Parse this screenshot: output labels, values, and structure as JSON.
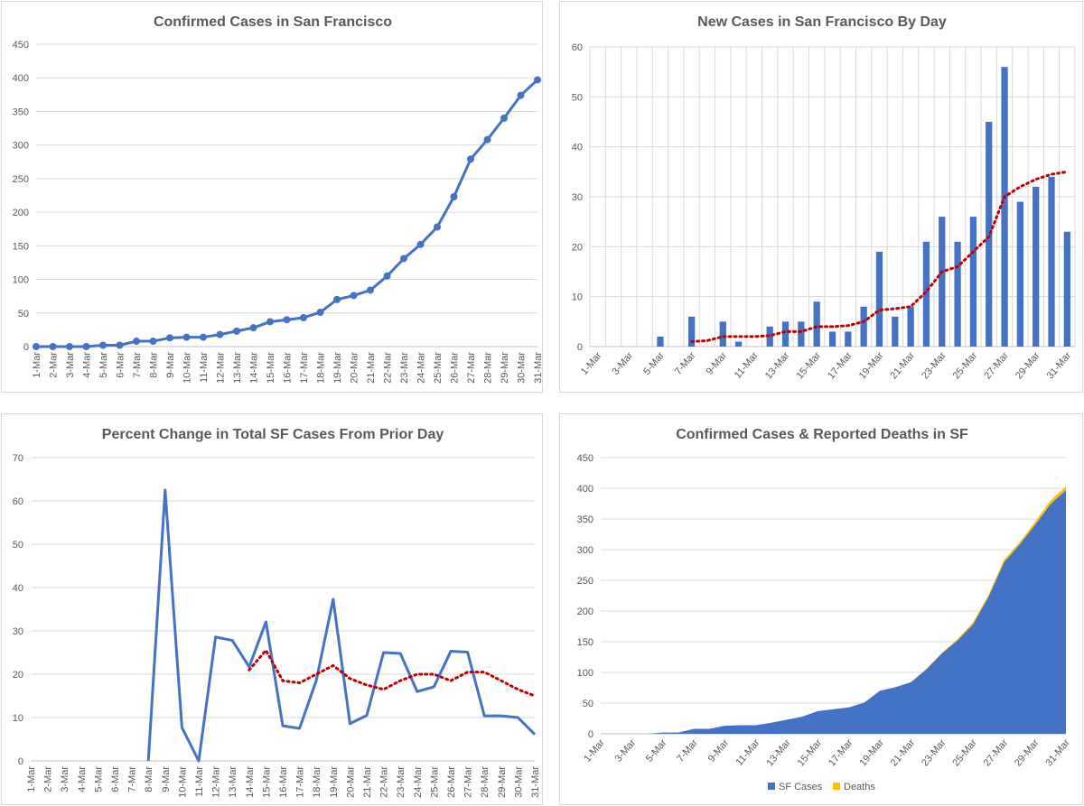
{
  "charts": [
    {
      "id": "c1",
      "type": "line",
      "title": "Confirmed Cases in San Francisco",
      "x": [
        "1-Mar",
        "2-Mar",
        "3-Mar",
        "4-Mar",
        "5-Mar",
        "6-Mar",
        "7-Mar",
        "8-Mar",
        "9-Mar",
        "10-Mar",
        "11-Mar",
        "12-Mar",
        "13-Mar",
        "14-Mar",
        "15-Mar",
        "16-Mar",
        "17-Mar",
        "18-Mar",
        "19-Mar",
        "20-Mar",
        "21-Mar",
        "22-Mar",
        "23-Mar",
        "24-Mar",
        "25-Mar",
        "26-Mar",
        "27-Mar",
        "28-Mar",
        "29-Mar",
        "30-Mar",
        "31-Mar"
      ],
      "x_tick_labels": [
        "1-Mar",
        "2-Mar",
        "3-Mar",
        "4-Mar",
        "5-Mar",
        "6-Mar",
        "7-Mar",
        "8-Mar",
        "9-Mar",
        "10-Mar",
        "11-Mar",
        "12-Mar",
        "13-Mar",
        "14-Mar",
        "15-Mar",
        "16-Mar",
        "17-Mar",
        "18-Mar",
        "19-Mar",
        "20-Mar",
        "21-Mar",
        "22-Mar",
        "23-Mar",
        "24-Mar",
        "25-Mar",
        "26-Mar",
        "27-Mar",
        "28-Mar",
        "29-Mar",
        "30-Mar",
        "31-Mar"
      ],
      "series": [
        {
          "values": [
            0,
            0,
            0,
            0,
            2,
            2,
            8,
            8,
            13,
            14,
            14,
            18,
            23,
            28,
            37,
            40,
            43,
            51,
            70,
            76,
            84,
            105,
            131,
            152,
            178,
            223,
            279,
            308,
            340,
            374,
            397
          ],
          "color": "#4472c4"
        }
      ],
      "ylim": [
        0,
        450
      ],
      "yticks": [
        0,
        50,
        100,
        150,
        200,
        250,
        300,
        350,
        400,
        450
      ],
      "grid": true
    },
    {
      "id": "c2",
      "type": "bar",
      "title": "New Cases in San Francisco By Day",
      "x": [
        "1-Mar",
        "2-Mar",
        "3-Mar",
        "4-Mar",
        "5-Mar",
        "6-Mar",
        "7-Mar",
        "8-Mar",
        "9-Mar",
        "10-Mar",
        "11-Mar",
        "12-Mar",
        "13-Mar",
        "14-Mar",
        "15-Mar",
        "16-Mar",
        "17-Mar",
        "18-Mar",
        "19-Mar",
        "20-Mar",
        "21-Mar",
        "22-Mar",
        "23-Mar",
        "24-Mar",
        "25-Mar",
        "26-Mar",
        "27-Mar",
        "28-Mar",
        "29-Mar",
        "30-Mar",
        "31-Mar"
      ],
      "x_tick_labels": [
        "1-Mar",
        "",
        "3-Mar",
        "",
        "5-Mar",
        "",
        "7-Mar",
        "",
        "9-Mar",
        "",
        "11-Mar",
        "",
        "13-Mar",
        "",
        "15-Mar",
        "",
        "17-Mar",
        "",
        "19-Mar",
        "",
        "21-Mar",
        "",
        "23-Mar",
        "",
        "25-Mar",
        "",
        "27-Mar",
        "",
        "29-Mar",
        "",
        "31-Mar"
      ],
      "series": [
        {
          "values": [
            0,
            0,
            0,
            0,
            2,
            0,
            6,
            0,
            5,
            1,
            0,
            4,
            5,
            5,
            9,
            3,
            3,
            8,
            19,
            6,
            8,
            21,
            26,
            21,
            26,
            45,
            56,
            29,
            32,
            34,
            23
          ],
          "color": "#4472c4"
        }
      ],
      "trend": {
        "values": [
          null,
          null,
          null,
          null,
          null,
          null,
          1,
          1.2,
          2,
          2,
          2,
          2.2,
          3,
          3,
          4,
          4,
          4.2,
          5,
          7.3,
          7.6,
          8,
          11,
          15,
          16,
          19,
          22,
          30,
          32,
          33.5,
          34.5,
          35
        ],
        "color": "#c00000"
      },
      "ylim": [
        0,
        60
      ],
      "yticks": [
        0,
        10,
        20,
        30,
        40,
        50,
        60
      ],
      "grid": true
    },
    {
      "id": "c3",
      "type": "line",
      "title": "Percent Change in Total SF Cases From Prior Day",
      "x": [
        "1-Mar",
        "2-Mar",
        "3-Mar",
        "4-Mar",
        "5-Mar",
        "6-Mar",
        "7-Mar",
        "8-Mar",
        "9-Mar",
        "10-Mar",
        "11-Mar",
        "12-Mar",
        "13-Mar",
        "14-Mar",
        "15-Mar",
        "16-Mar",
        "17-Mar",
        "18-Mar",
        "19-Mar",
        "20-Mar",
        "21-Mar",
        "22-Mar",
        "23-Mar",
        "24-Mar",
        "25-Mar",
        "26-Mar",
        "27-Mar",
        "28-Mar",
        "29-Mar",
        "30-Mar",
        "31-Mar"
      ],
      "x_tick_labels": [
        "1-Mar",
        "2-Mar",
        "3-Mar",
        "4-Mar",
        "5-Mar",
        "6-Mar",
        "7-Mar",
        "8-Mar",
        "9-Mar",
        "10-Mar",
        "11-Mar",
        "12-Mar",
        "13-Mar",
        "14-Mar",
        "15-Mar",
        "16-Mar",
        "17-Mar",
        "18-Mar",
        "19-Mar",
        "20-Mar",
        "21-Mar",
        "22-Mar",
        "23-Mar",
        "24-Mar",
        "25-Mar",
        "26-Mar",
        "27-Mar",
        "28-Mar",
        "29-Mar",
        "30-Mar",
        "31-Mar"
      ],
      "series": [
        {
          "values": [
            null,
            null,
            null,
            null,
            null,
            null,
            null,
            0,
            62.5,
            7.7,
            0,
            28.6,
            27.8,
            21.7,
            32.1,
            8.1,
            7.5,
            18.6,
            37.3,
            8.6,
            10.5,
            25,
            24.8,
            16,
            17.1,
            25.3,
            25.1,
            10.4,
            10.4,
            10,
            6.1
          ],
          "color": "#4472c4"
        }
      ],
      "trend": {
        "values": [
          null,
          null,
          null,
          null,
          null,
          null,
          null,
          null,
          null,
          null,
          null,
          null,
          null,
          21,
          25.5,
          18.5,
          18,
          20,
          22,
          19,
          17.5,
          16.5,
          18.5,
          20,
          20,
          18.5,
          20.5,
          20.5,
          18.5,
          16.5,
          15
        ],
        "color": "#c00000"
      },
      "ylim": [
        0,
        70
      ],
      "yticks": [
        0,
        10,
        20,
        30,
        40,
        50,
        60,
        70
      ],
      "grid": true
    },
    {
      "id": "c4",
      "type": "area",
      "title": "Confirmed Cases & Reported Deaths in SF",
      "x": [
        "1-Mar",
        "2-Mar",
        "3-Mar",
        "4-Mar",
        "5-Mar",
        "6-Mar",
        "7-Mar",
        "8-Mar",
        "9-Mar",
        "10-Mar",
        "11-Mar",
        "12-Mar",
        "13-Mar",
        "14-Mar",
        "15-Mar",
        "16-Mar",
        "17-Mar",
        "18-Mar",
        "19-Mar",
        "20-Mar",
        "21-Mar",
        "22-Mar",
        "23-Mar",
        "24-Mar",
        "25-Mar",
        "26-Mar",
        "27-Mar",
        "28-Mar",
        "29-Mar",
        "30-Mar",
        "31-Mar"
      ],
      "x_tick_labels": [
        "1-Mar",
        "",
        "3-Mar",
        "",
        "5-Mar",
        "",
        "7-Mar",
        "",
        "9-Mar",
        "",
        "11-Mar",
        "",
        "13-Mar",
        "",
        "15-Mar",
        "",
        "17-Mar",
        "",
        "19-Mar",
        "",
        "21-Mar",
        "",
        "23-Mar",
        "",
        "25-Mar",
        "",
        "27-Mar",
        "",
        "29-Mar",
        "",
        "31-Mar"
      ],
      "series": [
        {
          "name": "SF Cases",
          "values": [
            0,
            0,
            0,
            0,
            2,
            2,
            8,
            8,
            13,
            14,
            14,
            18,
            23,
            28,
            37,
            40,
            43,
            51,
            70,
            76,
            84,
            105,
            131,
            152,
            178,
            223,
            279,
            308,
            340,
            374,
            397
          ],
          "color": "#4472c4"
        },
        {
          "name": "Deaths",
          "values": [
            0,
            0,
            0,
            0,
            0,
            0,
            0,
            0,
            0,
            0,
            0,
            0,
            0,
            0,
            0,
            0,
            0,
            0,
            0,
            0,
            0,
            1,
            1,
            2,
            3,
            3,
            4,
            4,
            5,
            6,
            6
          ],
          "color": "#ffc000"
        }
      ],
      "ylim": [
        0,
        450
      ],
      "yticks": [
        0,
        50,
        100,
        150,
        200,
        250,
        300,
        350,
        400,
        450
      ],
      "grid": true,
      "legend": "bottom"
    }
  ]
}
